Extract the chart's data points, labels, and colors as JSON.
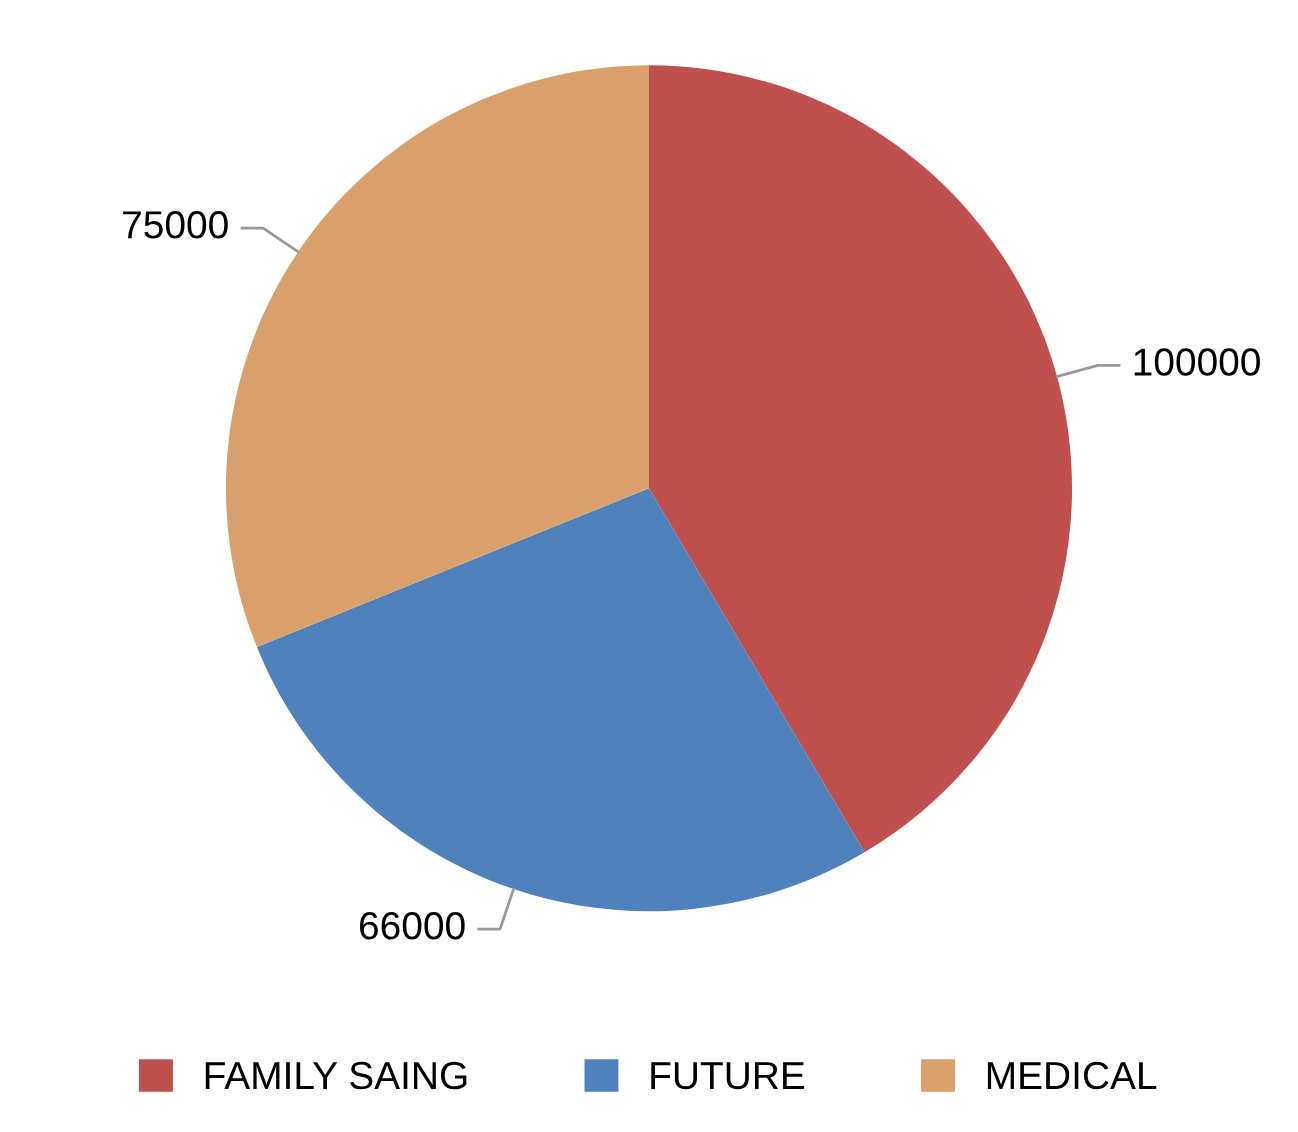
{
  "chart_data": {
    "type": "pie",
    "categories": [
      "FAMILY SAING",
      "FUTURE",
      "MEDICAL"
    ],
    "values": [
      100000,
      66000,
      75000
    ],
    "colors": [
      "#c0504d",
      "#4f81bd",
      "#d9a06b"
    ],
    "data_labels": true,
    "legend": "bottom"
  }
}
